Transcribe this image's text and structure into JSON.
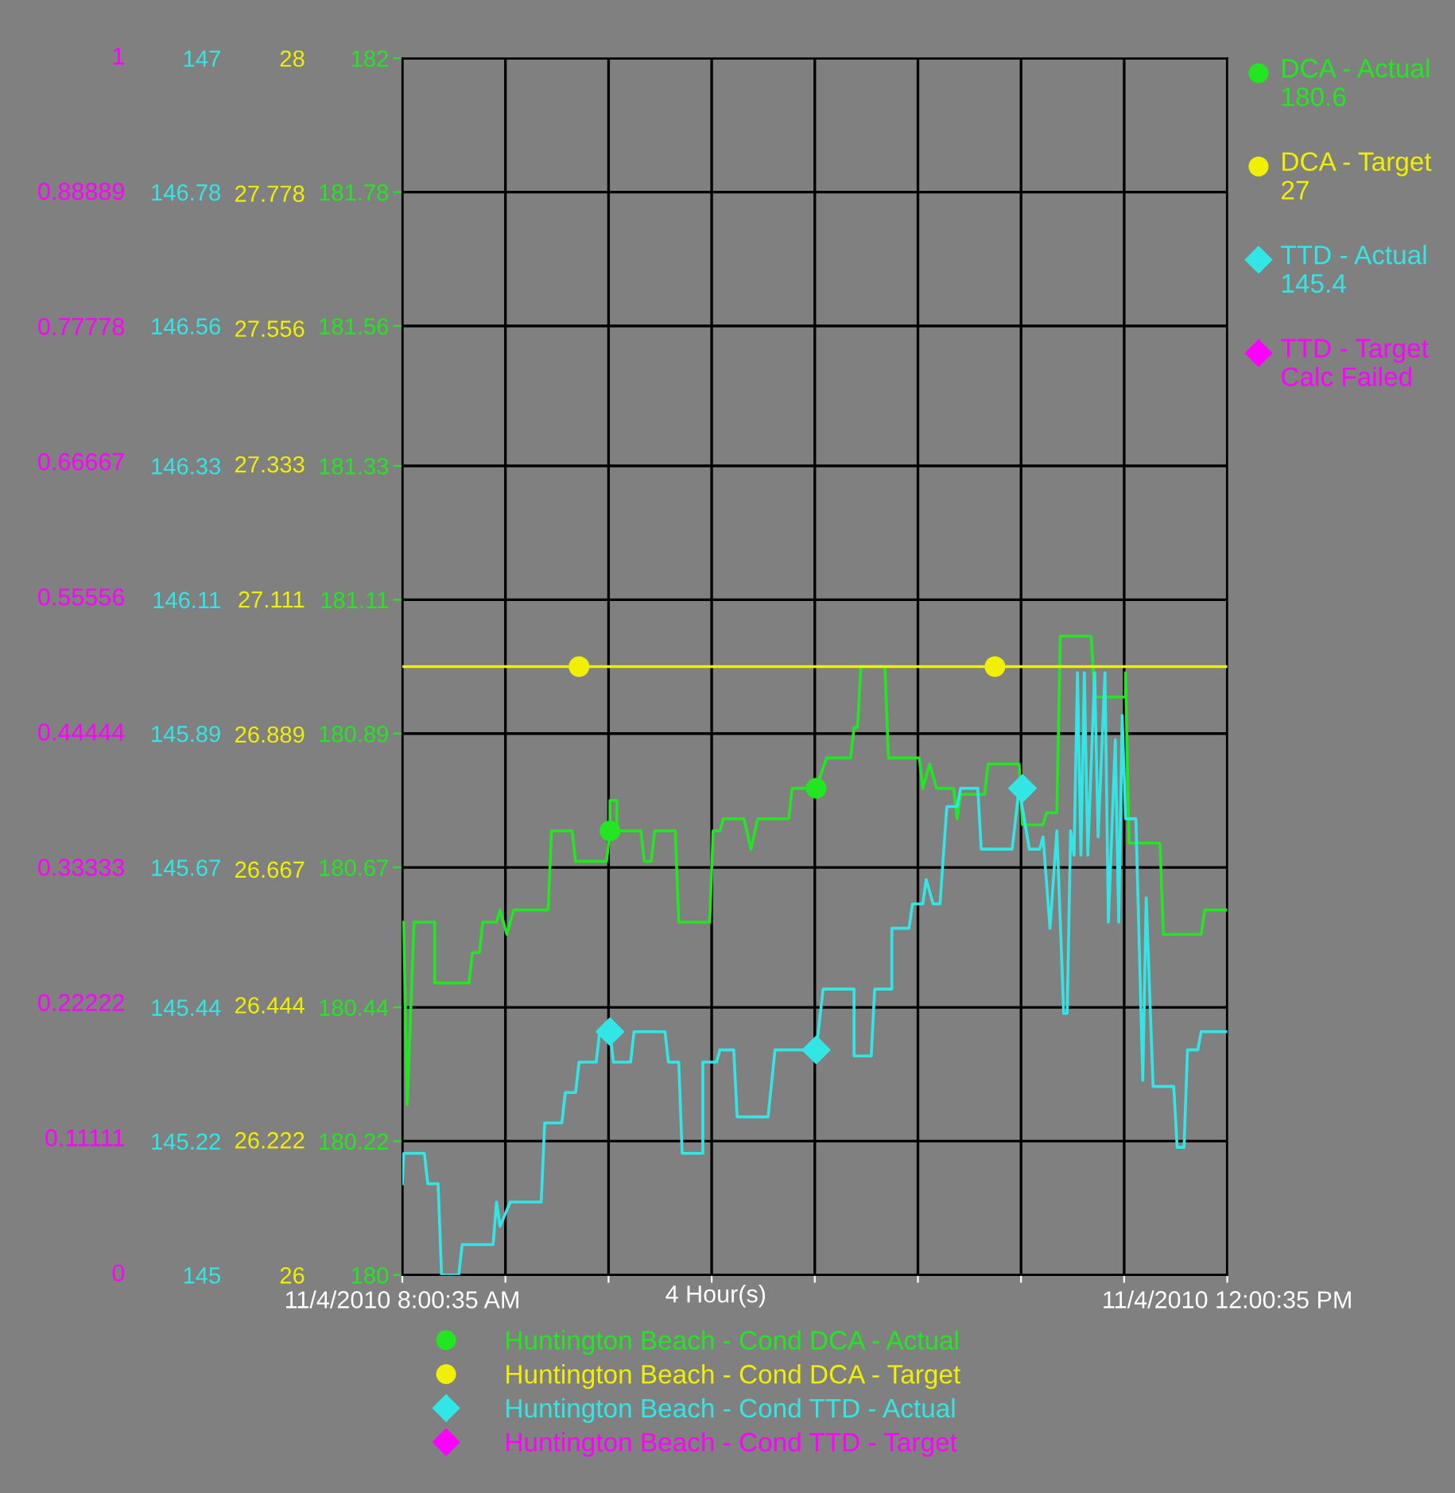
{
  "chart_data": {
    "type": "line",
    "xlabel": "4 Hour(s)",
    "xlim": [
      "2010-11-04T08:00:35",
      "2010-11-04T12:00:35"
    ],
    "xticks": [
      {
        "value": "2010-11-04T08:00:35",
        "label": "11/4/2010 8:00:35 AM"
      },
      {
        "value": "2010-11-04T08:30:35",
        "label": null
      },
      {
        "value": "2010-11-04T09:00:35",
        "label": null
      },
      {
        "value": "2010-11-04T09:30:35",
        "label": null
      },
      {
        "value": "2010-11-04T10:00:35",
        "label": null
      },
      {
        "value": "2010-11-04T10:30:35",
        "label": null
      },
      {
        "value": "2010-11-04T11:00:35",
        "label": null
      },
      {
        "value": "2010-11-04T11:30:35",
        "label": null
      },
      {
        "value": "2010-11-04T12:00:35",
        "label": "11/4/2010 12:00:35 PM"
      }
    ],
    "ylim": [
      180,
      182
    ],
    "yticks": [
      180,
      180.22,
      180.44,
      180.67,
      180.89,
      181.11,
      181.33,
      181.56,
      181.78,
      182
    ],
    "y2lim": [
      26,
      28
    ],
    "y2ticks": [
      26,
      26.222,
      26.444,
      26.667,
      26.889,
      27.111,
      27.333,
      27.556,
      27.778,
      28
    ],
    "y3lim": [
      145,
      147
    ],
    "y3ticks": [
      145,
      145.22,
      145.44,
      145.67,
      145.89,
      146.11,
      146.33,
      146.56,
      146.78,
      147
    ],
    "grid": true,
    "legend": "bottom",
    "annotations": [
      "DCA - Actual\n180.6",
      "DCA - Target\n27",
      "TTD - Actual\n145.4",
      "TTD - Target\nCalc Failed",
      "0",
      "0.11111",
      "0.22222",
      "0.33333",
      "0.44444",
      "0.55556",
      "0.66667",
      "0.77778",
      "0.88889",
      "1"
    ],
    "series": [
      {
        "name": "Huntington Beach - Cond DCA - Actual",
        "axis": "y",
        "color": "#22e622",
        "x": [
          "2010-11-04T08:00:35",
          "2010-11-04T08:01",
          "2010-11-04T08:02",
          "2010-11-04T08:04",
          "2010-11-04T08:10",
          "2010-11-04T08:10",
          "2010-11-04T08:20",
          "2010-11-04T08:21",
          "2010-11-04T08:23",
          "2010-11-04T08:24",
          "2010-11-04T08:28",
          "2010-11-04T08:29",
          "2010-11-04T08:31",
          "2010-11-04T08:33",
          "2010-11-04T08:43",
          "2010-11-04T08:44",
          "2010-11-04T08:50",
          "2010-11-04T08:51",
          "2010-11-04T09:00",
          "2010-11-04T09:01",
          "2010-11-04T09:01",
          "2010-11-04T09:03",
          "2010-11-04T09:03",
          "2010-11-04T09:10",
          "2010-11-04T09:11",
          "2010-11-04T09:13",
          "2010-11-04T09:14",
          "2010-11-04T09:20",
          "2010-11-04T09:21",
          "2010-11-04T09:30",
          "2010-11-04T09:31",
          "2010-11-04T09:33",
          "2010-11-04T09:34",
          "2010-11-04T09:40",
          "2010-11-04T09:42",
          "2010-11-04T09:44",
          "2010-11-04T09:53",
          "2010-11-04T09:54",
          "2010-11-04T10:01",
          "2010-11-04T10:04",
          "2010-11-04T10:11",
          "2010-11-04T10:12",
          "2010-11-04T10:13",
          "2010-11-04T10:14",
          "2010-11-04T10:21",
          "2010-11-04T10:22",
          "2010-11-04T10:31",
          "2010-11-04T10:32",
          "2010-11-04T10:34",
          "2010-11-04T10:36",
          "2010-11-04T10:41",
          "2010-11-04T10:42",
          "2010-11-04T10:43",
          "2010-11-04T10:50",
          "2010-11-04T10:51",
          "2010-11-04T11:00",
          "2010-11-04T11:01",
          "2010-11-04T11:07",
          "2010-11-04T11:08",
          "2010-11-04T11:11",
          "2010-11-04T11:12",
          "2010-11-04T11:21",
          "2010-11-04T11:22",
          "2010-11-04T11:31",
          "2010-11-04T11:31",
          "2010-11-04T11:32",
          "2010-11-04T11:41",
          "2010-11-04T11:42",
          "2010-11-04T11:53",
          "2010-11-04T11:54",
          "2010-11-04T12:00:35"
        ],
        "values": [
          180.58,
          180.58,
          180.28,
          180.58,
          180.58,
          180.48,
          180.48,
          180.53,
          180.53,
          180.58,
          180.58,
          180.6,
          180.56,
          180.6,
          180.6,
          180.73,
          180.73,
          180.68,
          180.68,
          180.73,
          180.78,
          180.78,
          180.73,
          180.73,
          180.68,
          180.68,
          180.73,
          180.73,
          180.58,
          180.58,
          180.73,
          180.73,
          180.75,
          180.75,
          180.7,
          180.75,
          180.75,
          180.8,
          180.8,
          180.85,
          180.85,
          180.9,
          180.9,
          181.0,
          181.0,
          180.85,
          180.85,
          180.8,
          180.84,
          180.8,
          180.8,
          180.75,
          180.79,
          180.79,
          180.84,
          180.84,
          180.74,
          180.74,
          180.76,
          180.76,
          181.05,
          181.05,
          180.95,
          180.95,
          180.99,
          180.71,
          180.71,
          180.56,
          180.56,
          180.6,
          180.6
        ]
      },
      {
        "name": "Huntington Beach - Cond DCA - Target",
        "axis": "y2",
        "color": "#f0f000",
        "x": [
          "2010-11-04T08:00:35",
          "2010-11-04T12:00:35"
        ],
        "values": [
          27,
          27
        ]
      },
      {
        "name": "Huntington Beach - Cond TTD - Actual",
        "axis": "y3",
        "color": "#33e6e6",
        "x": [
          "2010-11-04T08:00:35",
          "2010-11-04T08:01",
          "2010-11-04T08:07",
          "2010-11-04T08:08",
          "2010-11-04T08:11",
          "2010-11-04T08:12",
          "2010-11-04T08:17",
          "2010-11-04T08:18",
          "2010-11-04T08:27",
          "2010-11-04T08:28",
          "2010-11-04T08:29",
          "2010-11-04T08:32",
          "2010-11-04T08:41",
          "2010-11-04T08:42",
          "2010-11-04T08:47",
          "2010-11-04T08:48",
          "2010-11-04T08:51",
          "2010-11-04T08:52",
          "2010-11-04T08:57",
          "2010-11-04T08:58",
          "2010-11-04T09:01",
          "2010-11-04T09:02",
          "2010-11-04T09:07",
          "2010-11-04T09:08",
          "2010-11-04T09:17",
          "2010-11-04T09:18",
          "2010-11-04T09:21",
          "2010-11-04T09:22",
          "2010-11-04T09:28",
          "2010-11-04T09:28",
          "2010-11-04T09:32",
          "2010-11-04T09:33",
          "2010-11-04T09:37",
          "2010-11-04T09:38",
          "2010-11-04T09:47",
          "2010-11-04T09:49",
          "2010-11-04T10:01",
          "2010-11-04T10:03",
          "2010-11-04T10:12",
          "2010-11-04T10:12",
          "2010-11-04T10:17",
          "2010-11-04T10:18",
          "2010-11-04T10:23",
          "2010-11-04T10:23",
          "2010-11-04T10:28",
          "2010-11-04T10:29",
          "2010-11-04T10:32",
          "2010-11-04T10:33",
          "2010-11-04T10:35",
          "2010-11-04T10:37",
          "2010-11-04T10:39",
          "2010-11-04T10:42",
          "2010-11-04T10:43",
          "2010-11-04T10:48",
          "2010-11-04T10:49",
          "2010-11-04T10:58",
          "2010-11-04T11:00",
          "2010-11-04T11:03",
          "2010-11-04T11:06",
          "2010-11-04T11:07",
          "2010-11-04T11:09",
          "2010-11-04T11:11",
          "2010-11-04T11:13",
          "2010-11-04T11:14",
          "2010-11-04T11:15",
          "2010-11-04T11:16",
          "2010-11-04T11:17",
          "2010-11-04T11:18",
          "2010-11-04T11:19",
          "2010-11-04T11:20",
          "2010-11-04T11:22",
          "2010-11-04T11:23",
          "2010-11-04T11:25",
          "2010-11-04T11:26",
          "2010-11-04T11:28",
          "2010-11-04T11:29",
          "2010-11-04T11:30",
          "2010-11-04T11:31",
          "2010-11-04T11:34",
          "2010-11-04T11:36",
          "2010-11-04T11:37",
          "2010-11-04T11:39",
          "2010-11-04T11:45",
          "2010-11-04T11:46",
          "2010-11-04T11:48",
          "2010-11-04T11:49",
          "2010-11-04T11:52",
          "2010-11-04T11:53",
          "2010-11-04T12:00:35"
        ],
        "values": [
          145.15,
          145.2,
          145.2,
          145.15,
          145.15,
          145.0,
          145.0,
          145.05,
          145.05,
          145.12,
          145.08,
          145.12,
          145.12,
          145.25,
          145.25,
          145.3,
          145.3,
          145.35,
          145.35,
          145.4,
          145.4,
          145.35,
          145.35,
          145.4,
          145.4,
          145.35,
          145.35,
          145.2,
          145.2,
          145.35,
          145.35,
          145.37,
          145.37,
          145.26,
          145.26,
          145.37,
          145.37,
          145.47,
          145.47,
          145.36,
          145.36,
          145.47,
          145.47,
          145.57,
          145.57,
          145.61,
          145.61,
          145.65,
          145.61,
          145.61,
          145.77,
          145.77,
          145.8,
          145.8,
          145.7,
          145.7,
          145.8,
          145.7,
          145.7,
          145.72,
          145.57,
          145.73,
          145.43,
          145.43,
          145.73,
          145.69,
          145.99,
          145.69,
          145.99,
          145.69,
          145.99,
          145.72,
          145.99,
          145.58,
          145.88,
          145.58,
          145.92,
          145.75,
          145.75,
          145.32,
          145.62,
          145.31,
          145.31,
          145.21,
          145.21,
          145.37,
          145.37,
          145.4,
          145.4
        ]
      },
      {
        "name": "Huntington Beach - Cond TTD - Target",
        "type": "scatter",
        "marker": "diamond",
        "color": "#ff00ff"
      },
      {
        "type": "scatter",
        "axis": "y",
        "marker": "circle",
        "color": "#22e622",
        "x": [
          "2010-11-04T09:01",
          "2010-11-04T10:01"
        ],
        "values": [
          180.73,
          180.8
        ]
      },
      {
        "type": "scatter",
        "axis": "y2",
        "marker": "circle",
        "color": "#f0f000",
        "x": [
          "2010-11-04T08:52",
          "2010-11-04T10:53"
        ],
        "values": [
          27,
          27
        ]
      },
      {
        "type": "scatter",
        "axis": "y3",
        "marker": "diamond",
        "color": "#33e6e6",
        "x": [
          "2010-11-04T09:01",
          "2010-11-04T10:01",
          "2010-11-04T11:01"
        ],
        "values": [
          145.4,
          145.37,
          145.8
        ]
      }
    ]
  }
}
